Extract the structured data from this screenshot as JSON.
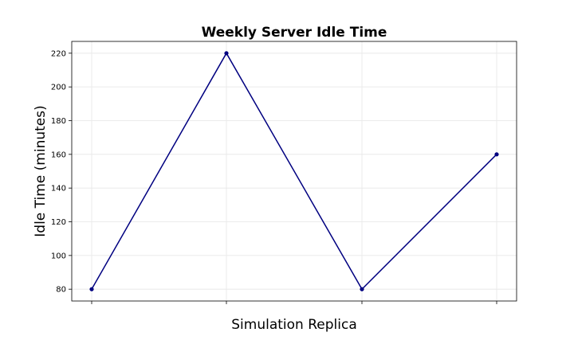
{
  "chart_data": {
    "type": "line",
    "title": "Weekly Server Idle Time",
    "xlabel": "Simulation Replica",
    "ylabel": "Idle Time (minutes)",
    "x": [
      1,
      2,
      3,
      4
    ],
    "x_tick_labels": [
      "",
      "",
      "",
      ""
    ],
    "series": [
      {
        "values": [
          80,
          220,
          80,
          160
        ]
      }
    ],
    "ylim": [
      73,
      227
    ],
    "y_ticks": [
      80,
      100,
      120,
      140,
      160,
      180,
      200,
      220
    ],
    "grid": true,
    "line_color": "#000080",
    "marker": "circle"
  }
}
